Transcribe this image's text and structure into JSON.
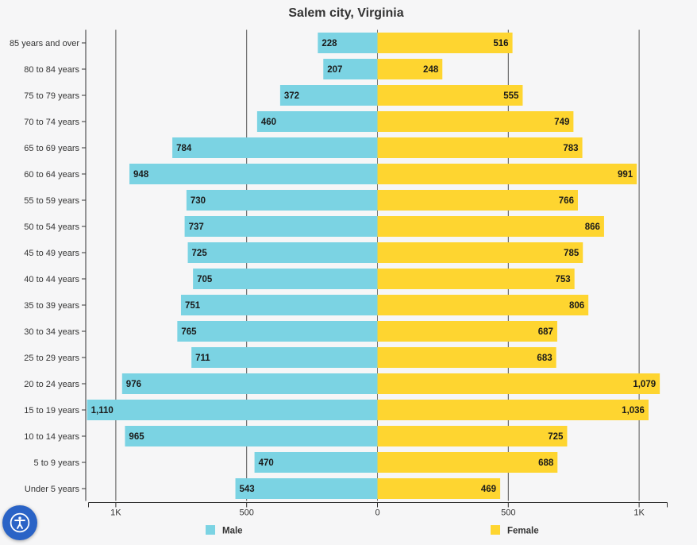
{
  "chart_data": {
    "type": "bar",
    "orientation": "horizontal-pyramid",
    "title": "Salem city, Virginia",
    "categories": [
      "85 years and over",
      "80 to 84 years",
      "75 to 79 years",
      "70 to 74 years",
      "65 to 69 years",
      "60 to 64 years",
      "55 to 59 years",
      "50 to 54 years",
      "45 to 49 years",
      "40 to 44 years",
      "35 to 39 years",
      "30 to 34 years",
      "25 to 29 years",
      "20 to 24 years",
      "15 to 19 years",
      "10 to 14 years",
      "5 to 9 years",
      "Under 5 years"
    ],
    "series": [
      {
        "name": "Male",
        "color": "#7bd3e3",
        "side": "left",
        "values": [
          228,
          207,
          372,
          460,
          784,
          948,
          730,
          737,
          725,
          705,
          751,
          765,
          711,
          976,
          1110,
          965,
          470,
          543
        ],
        "labels": [
          "228",
          "207",
          "372",
          "460",
          "784",
          "948",
          "730",
          "737",
          "725",
          "705",
          "751",
          "765",
          "711",
          "976",
          "1,110",
          "965",
          "470",
          "543"
        ]
      },
      {
        "name": "Female",
        "color": "#fed530",
        "side": "right",
        "values": [
          516,
          248,
          555,
          749,
          783,
          991,
          766,
          866,
          785,
          753,
          806,
          687,
          683,
          1079,
          1036,
          725,
          688,
          469
        ],
        "labels": [
          "516",
          "248",
          "555",
          "749",
          "783",
          "991",
          "766",
          "866",
          "785",
          "753",
          "806",
          "687",
          "683",
          "1,079",
          "1,036",
          "725",
          "688",
          "469"
        ]
      }
    ],
    "x_range": [
      -1100,
      1100
    ],
    "x_ticks": [
      {
        "value": -1000,
        "label": "1K"
      },
      {
        "value": -500,
        "label": "500"
      },
      {
        "value": 0,
        "label": "0"
      },
      {
        "value": 500,
        "label": "500"
      },
      {
        "value": 1000,
        "label": "1K"
      }
    ],
    "grid": true,
    "legend_position": "bottom"
  },
  "accessibility": {
    "icon": "accessibility-icon"
  }
}
